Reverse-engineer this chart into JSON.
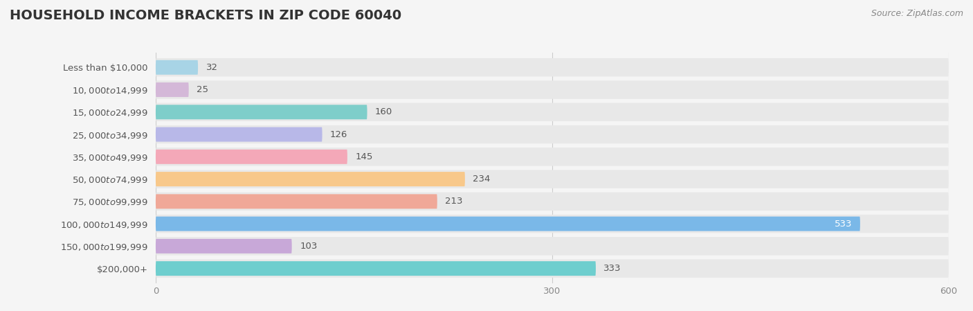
{
  "title": "HOUSEHOLD INCOME BRACKETS IN ZIP CODE 60040",
  "source": "Source: ZipAtlas.com",
  "categories": [
    "Less than $10,000",
    "$10,000 to $14,999",
    "$15,000 to $24,999",
    "$25,000 to $34,999",
    "$35,000 to $49,999",
    "$50,000 to $74,999",
    "$75,000 to $99,999",
    "$100,000 to $149,999",
    "$150,000 to $199,999",
    "$200,000+"
  ],
  "values": [
    32,
    25,
    160,
    126,
    145,
    234,
    213,
    533,
    103,
    333
  ],
  "bar_colors": [
    "#a8d4e6",
    "#d4b8d8",
    "#7ececa",
    "#b8b8e8",
    "#f4a8b8",
    "#f8c88a",
    "#f0a898",
    "#7ab8e8",
    "#c8a8d8",
    "#6ecece"
  ],
  "xlim": [
    0,
    600
  ],
  "xticks": [
    0,
    300,
    600
  ],
  "background_color": "#f5f5f5",
  "bar_background_color": "#e8e8e8",
  "title_fontsize": 14,
  "label_fontsize": 9.5,
  "value_fontsize": 9.5,
  "tick_fontsize": 9.5,
  "source_fontsize": 9.0,
  "label_color": "#555555",
  "value_color_outside": "#555555",
  "value_color_inside": "#ffffff"
}
